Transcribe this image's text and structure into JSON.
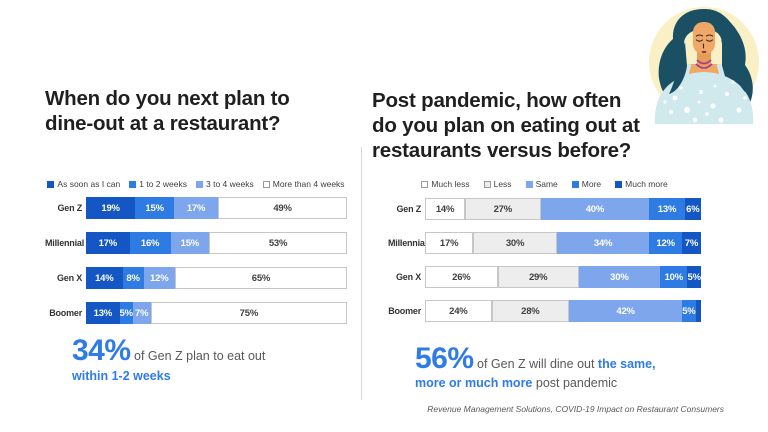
{
  "left_panel": {
    "title": "When do you next plan to dine-out at a restaurant?",
    "highlight": {
      "big": "34%",
      "gray": " of Gen Z plan to eat out",
      "blue_line": "within 1-2 weeks"
    }
  },
  "right_panel": {
    "title": "Post pandemic, how often do you plan on eating out at restaurants versus before?",
    "highlight": {
      "big": "56%",
      "gray1": " of Gen Z will dine out ",
      "blue": "the same, more or much more",
      "gray2": " post pandemic"
    }
  },
  "source_note": "Revenue Management Solutions, COVID-19 Impact on Restaurant Consumers",
  "colors": {
    "accent_blue": "#2f7be8",
    "divider": "#d9d9d9",
    "title_text": "#1f1f1f",
    "gray_text": "#595959",
    "segment_border": "#c6c6c6"
  },
  "illustration": {
    "name": "woman-avatar",
    "background_circle": "#faf0c5",
    "hair": "#1b4f63",
    "skin": "#f0a868",
    "dress": "#cfe9ec",
    "necklace": "#a23e8c"
  },
  "chart_data": [
    {
      "type": "bar",
      "orientation": "horizontal-stacked",
      "title": "When do you next plan to dine-out at a restaurant?",
      "categories": [
        "Gen Z",
        "Millennial",
        "Gen X",
        "Boomer"
      ],
      "legend_position": "top",
      "xlim": [
        0,
        100
      ],
      "grid": false,
      "series": [
        {
          "name": "As soon as I can",
          "color": "#1356c4",
          "text_color": "#ffffff",
          "bordered": false,
          "values": [
            19,
            17,
            14,
            13
          ],
          "labels": [
            "19%",
            "17%",
            "14%",
            "13%"
          ]
        },
        {
          "name": "1 to 2 weeks",
          "color": "#2e7be4",
          "text_color": "#ffffff",
          "bordered": false,
          "values": [
            15,
            16,
            8,
            5
          ],
          "labels": [
            "15%",
            "16%",
            "8%",
            "5%"
          ]
        },
        {
          "name": "3 to 4 weeks",
          "color": "#7ea6ec",
          "text_color": "#ffffff",
          "bordered": false,
          "values": [
            17,
            15,
            12,
            7
          ],
          "labels": [
            "17%",
            "15%",
            "12%",
            "7%"
          ]
        },
        {
          "name": "More than 4 weeks",
          "color": "#ffffff",
          "text_color": "#404040",
          "bordered": true,
          "values": [
            49,
            53,
            65,
            75
          ],
          "labels": [
            "49%",
            "53%",
            "65%",
            "75%"
          ]
        }
      ],
      "annotation": "34% of Gen Z plan to eat out within 1-2 weeks"
    },
    {
      "type": "bar",
      "orientation": "horizontal-stacked",
      "title": "Post pandemic, how often do you plan on eating out at restaurants versus before?",
      "categories": [
        "Gen Z",
        "Millennial",
        "Gen X",
        "Boomer"
      ],
      "legend_position": "top",
      "xlim": [
        0,
        100
      ],
      "grid": false,
      "series": [
        {
          "name": "Much less",
          "color": "#ffffff",
          "text_color": "#404040",
          "bordered": true,
          "values": [
            14,
            17,
            26,
            24
          ],
          "labels": [
            "14%",
            "17%",
            "26%",
            "24%"
          ]
        },
        {
          "name": "Less",
          "color": "#ededed",
          "text_color": "#404040",
          "bordered": true,
          "values": [
            27,
            30,
            29,
            28
          ],
          "labels": [
            "27%",
            "30%",
            "29%",
            "28%"
          ]
        },
        {
          "name": "Same",
          "color": "#7ea6ec",
          "text_color": "#ffffff",
          "bordered": false,
          "values": [
            40,
            34,
            30,
            42
          ],
          "labels": [
            "40%",
            "34%",
            "30%",
            "42%"
          ]
        },
        {
          "name": "More",
          "color": "#2e7be4",
          "text_color": "#ffffff",
          "bordered": false,
          "values": [
            13,
            12,
            10,
            5
          ],
          "labels": [
            "13%",
            "12%",
            "10%",
            "5%"
          ]
        },
        {
          "name": "Much more",
          "color": "#1356c4",
          "text_color": "#ffffff",
          "bordered": false,
          "values": [
            6,
            7,
            5,
            2
          ],
          "labels": [
            "6%",
            "7%",
            "5%",
            ""
          ]
        }
      ],
      "annotation": "56% of Gen Z will dine out the same, more or much more post pandemic"
    }
  ]
}
